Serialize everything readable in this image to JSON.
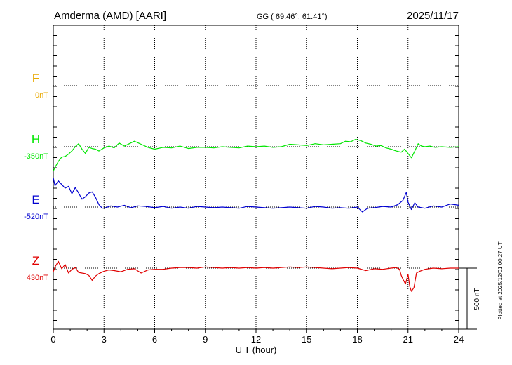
{
  "header": {
    "station": "Amderma (AMD)  [AARI]",
    "coords": "GG ( 69.46°,  61.41°)",
    "date": "2025/11/17"
  },
  "side_note": "Plotted at 2025/12/01 00:27 UT",
  "colors": {
    "F": "#e8a800",
    "H": "#00e600",
    "E": "#0000d0",
    "Z": "#e00000",
    "axis": "#000000"
  },
  "chart_data": {
    "type": "line",
    "xlabel": "U T (hour)",
    "xlim": [
      0,
      24
    ],
    "xticks": [
      "0",
      "3",
      "6",
      "9",
      "12",
      "15",
      "18",
      "21",
      "24"
    ],
    "scale_label": "500 nT",
    "scale_nT": 500,
    "series": [
      {
        "name": "F",
        "baseline_label": "0nT",
        "x": [],
        "y": []
      },
      {
        "name": "H",
        "baseline_label": "-350nT",
        "x": [
          0,
          0.1,
          0.3,
          0.5,
          0.7,
          0.9,
          1.1,
          1.3,
          1.5,
          1.7,
          1.9,
          2.1,
          2.3,
          2.5,
          2.7,
          3.0,
          3.3,
          3.6,
          3.9,
          4.2,
          4.5,
          4.8,
          5.2,
          5.6,
          6.0,
          6.5,
          7.0,
          7.5,
          8.0,
          8.5,
          9.0,
          9.5,
          10.0,
          10.5,
          11.0,
          11.5,
          12.0,
          12.5,
          13.0,
          13.5,
          14.0,
          14.5,
          15.0,
          15.5,
          16.0,
          16.5,
          17.0,
          17.3,
          17.6,
          17.9,
          18.2,
          18.5,
          18.8,
          19.1,
          19.4,
          19.7,
          20.0,
          20.3,
          20.6,
          20.8,
          21.0,
          21.2,
          21.4,
          21.6,
          21.8,
          22.0,
          22.3,
          22.6,
          23.0,
          23.5,
          24.0
        ],
        "y": [
          -200,
          -170,
          -120,
          -85,
          -80,
          -60,
          -35,
          0,
          25,
          -20,
          -55,
          -5,
          -15,
          -20,
          -35,
          -10,
          5,
          -10,
          30,
          5,
          25,
          45,
          20,
          -5,
          -20,
          -5,
          -10,
          5,
          -15,
          -5,
          -5,
          -10,
          0,
          -5,
          -10,
          5,
          0,
          5,
          -5,
          0,
          20,
          15,
          10,
          25,
          15,
          20,
          25,
          45,
          40,
          60,
          50,
          30,
          20,
          5,
          10,
          -10,
          -20,
          -35,
          -45,
          -20,
          -55,
          -90,
          -35,
          25,
          5,
          0,
          5,
          -5,
          0,
          -5,
          0
        ]
      },
      {
        "name": "E",
        "baseline_label": "-520nT",
        "x": [
          0,
          0.1,
          0.3,
          0.5,
          0.7,
          0.9,
          1.1,
          1.3,
          1.5,
          1.7,
          1.9,
          2.1,
          2.3,
          2.5,
          2.7,
          2.9,
          3.1,
          3.4,
          3.8,
          4.2,
          4.6,
          5.0,
          5.5,
          6.0,
          6.5,
          7.0,
          7.5,
          8.0,
          8.5,
          9.0,
          9.5,
          10.0,
          10.5,
          11.0,
          11.5,
          12.0,
          12.5,
          13.0,
          13.5,
          14.0,
          14.5,
          15.0,
          15.5,
          16.0,
          16.5,
          17.0,
          17.5,
          18.0,
          18.3,
          18.6,
          19.0,
          19.5,
          20.0,
          20.4,
          20.7,
          20.9,
          21.0,
          21.2,
          21.4,
          21.6,
          22.0,
          22.5,
          23.0,
          23.5,
          24.0
        ],
        "y": [
          240,
          175,
          215,
          185,
          155,
          170,
          110,
          160,
          115,
          65,
          85,
          115,
          125,
          80,
          20,
          -10,
          -5,
          10,
          0,
          15,
          -5,
          10,
          5,
          -5,
          5,
          -10,
          0,
          -10,
          5,
          0,
          -5,
          0,
          -5,
          -10,
          5,
          0,
          -5,
          -10,
          -5,
          0,
          -5,
          -10,
          5,
          0,
          -10,
          -5,
          -10,
          0,
          -40,
          -10,
          -5,
          5,
          0,
          20,
          55,
          120,
          40,
          -20,
          35,
          0,
          -10,
          10,
          0,
          25,
          15
        ]
      },
      {
        "name": "Z",
        "baseline_label": "430nT",
        "x": [
          0,
          0.1,
          0.3,
          0.5,
          0.7,
          0.9,
          1.1,
          1.3,
          1.5,
          1.7,
          1.9,
          2.1,
          2.3,
          2.5,
          2.7,
          3.0,
          3.3,
          3.6,
          4.0,
          4.4,
          4.8,
          5.2,
          5.6,
          6.0,
          6.5,
          7.0,
          7.5,
          8.0,
          8.5,
          9.0,
          9.5,
          10.0,
          10.5,
          11.0,
          11.5,
          12.0,
          12.5,
          13.0,
          13.5,
          14.0,
          14.5,
          15.0,
          15.5,
          16.0,
          16.5,
          17.0,
          17.5,
          18.0,
          18.5,
          19.0,
          19.5,
          20.0,
          20.3,
          20.5,
          20.6,
          20.7,
          20.85,
          21.0,
          21.1,
          21.2,
          21.35,
          21.5,
          21.7,
          22.0,
          22.5,
          23.0,
          23.5,
          24.0
        ],
        "y": [
          -30,
          10,
          55,
          -5,
          30,
          -40,
          -10,
          5,
          -35,
          -40,
          -45,
          -60,
          -100,
          -65,
          -45,
          -25,
          -15,
          -20,
          -30,
          -10,
          -5,
          -40,
          -15,
          -10,
          -10,
          0,
          5,
          5,
          0,
          10,
          5,
          0,
          5,
          0,
          5,
          0,
          5,
          0,
          5,
          10,
          5,
          10,
          5,
          0,
          -5,
          0,
          5,
          0,
          -20,
          -5,
          -10,
          0,
          5,
          -10,
          -60,
          -90,
          -130,
          -50,
          -150,
          -190,
          -160,
          -40,
          -25,
          -10,
          0,
          -5,
          0,
          0
        ]
      }
    ]
  }
}
